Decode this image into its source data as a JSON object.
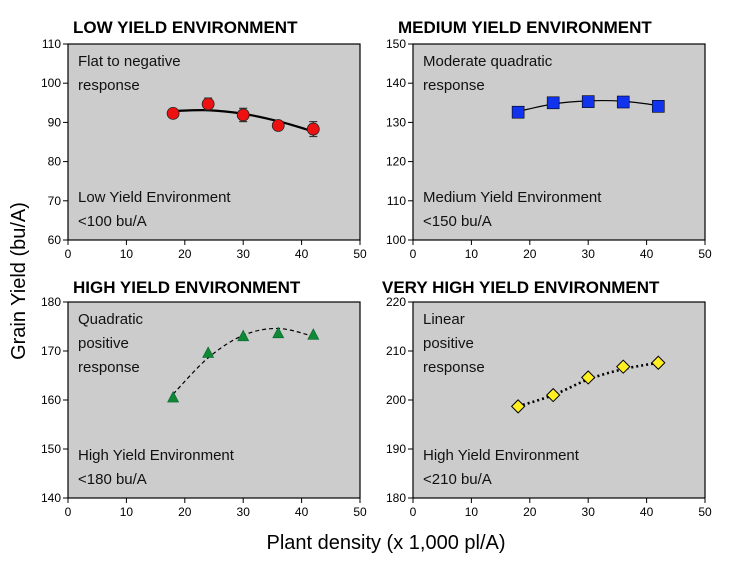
{
  "xlabel": "Plant density (x 1,000 pl/A)",
  "ylabel": "Grain Yield (bu/A)",
  "chart_data": [
    {
      "type": "scatter",
      "title": "LOW YIELD ENVIRONMENT",
      "response_note": [
        "Flat to negative",
        "response"
      ],
      "environment_note": [
        "Low Yield Environment",
        "<100 bu/A"
      ],
      "xlim": [
        0,
        50
      ],
      "ylim": [
        60,
        110
      ],
      "xticks": [
        0,
        10,
        20,
        30,
        40,
        50
      ],
      "yticks": [
        60,
        70,
        80,
        90,
        100,
        110
      ],
      "marker": "circle",
      "marker_color": "#ee1111",
      "line_style": "solid",
      "line_width": 2.2,
      "x": [
        18,
        24,
        30,
        36,
        42
      ],
      "y": [
        92.3,
        94.7,
        91.9,
        89.2,
        88.3
      ],
      "error": [
        1.0,
        1.5,
        1.7,
        0.8,
        1.9
      ],
      "fit": [
        [
          18,
          92.9
        ],
        [
          24,
          93.1
        ],
        [
          30,
          92.2
        ],
        [
          36,
          90.3
        ],
        [
          42,
          87.7
        ]
      ]
    },
    {
      "type": "scatter",
      "title": "MEDIUM YIELD ENVIRONMENT",
      "response_note": [
        "Moderate quadratic",
        "response"
      ],
      "environment_note": [
        "Medium Yield Environment",
        "<150 bu/A"
      ],
      "xlim": [
        0,
        50
      ],
      "ylim": [
        100,
        150
      ],
      "xticks": [
        0,
        10,
        20,
        30,
        40,
        50
      ],
      "yticks": [
        100,
        110,
        120,
        130,
        140,
        150
      ],
      "marker": "square",
      "marker_color": "#1133ee",
      "line_style": "solid",
      "line_width": 1.2,
      "x": [
        18,
        24,
        30,
        36,
        42
      ],
      "y": [
        132.6,
        135.0,
        135.3,
        135.2,
        134.1
      ],
      "error": [],
      "fit": [
        [
          18,
          132.8
        ],
        [
          24,
          134.7
        ],
        [
          30,
          135.5
        ],
        [
          36,
          135.4
        ],
        [
          42,
          134.3
        ]
      ]
    },
    {
      "type": "scatter",
      "title": "HIGH YIELD ENVIRONMENT",
      "response_note": [
        "Quadratic",
        "positive",
        "response"
      ],
      "environment_note": [
        "High Yield Environment",
        "<180 bu/A"
      ],
      "xlim": [
        0,
        50
      ],
      "ylim": [
        140,
        180
      ],
      "xticks": [
        0,
        10,
        20,
        30,
        40,
        50
      ],
      "yticks": [
        140,
        150,
        160,
        170,
        180
      ],
      "marker": "triangle",
      "marker_color": "#118833",
      "line_style": "dashed",
      "line_width": 1.2,
      "x": [
        18,
        24,
        30,
        36,
        42
      ],
      "y": [
        160.5,
        169.6,
        173.0,
        173.6,
        173.3
      ],
      "error": [],
      "fit": [
        [
          18,
          161.2
        ],
        [
          24,
          168.6
        ],
        [
          30,
          173.2
        ],
        [
          36,
          174.6
        ],
        [
          42,
          173.0
        ]
      ]
    },
    {
      "type": "scatter",
      "title": "VERY HIGH YIELD ENVIRONMENT",
      "response_note": [
        "Linear",
        "positive",
        "response"
      ],
      "environment_note": [
        "High Yield Environment",
        "<210 bu/A"
      ],
      "xlim": [
        0,
        50
      ],
      "ylim": [
        180,
        220
      ],
      "xticks": [
        0,
        10,
        20,
        30,
        40,
        50
      ],
      "yticks": [
        180,
        190,
        200,
        210,
        220
      ],
      "marker": "diamond",
      "marker_color": "#ffee22",
      "line_style": "dotted",
      "line_width": 2.6,
      "x": [
        18,
        24,
        30,
        36,
        42
      ],
      "y": [
        198.7,
        201.0,
        204.6,
        206.8,
        207.6
      ],
      "error": [],
      "fit": [
        [
          18,
          198.7
        ],
        [
          24,
          201.0
        ],
        [
          30,
          204.2
        ],
        [
          36,
          206.3
        ],
        [
          42,
          207.6
        ]
      ]
    }
  ]
}
